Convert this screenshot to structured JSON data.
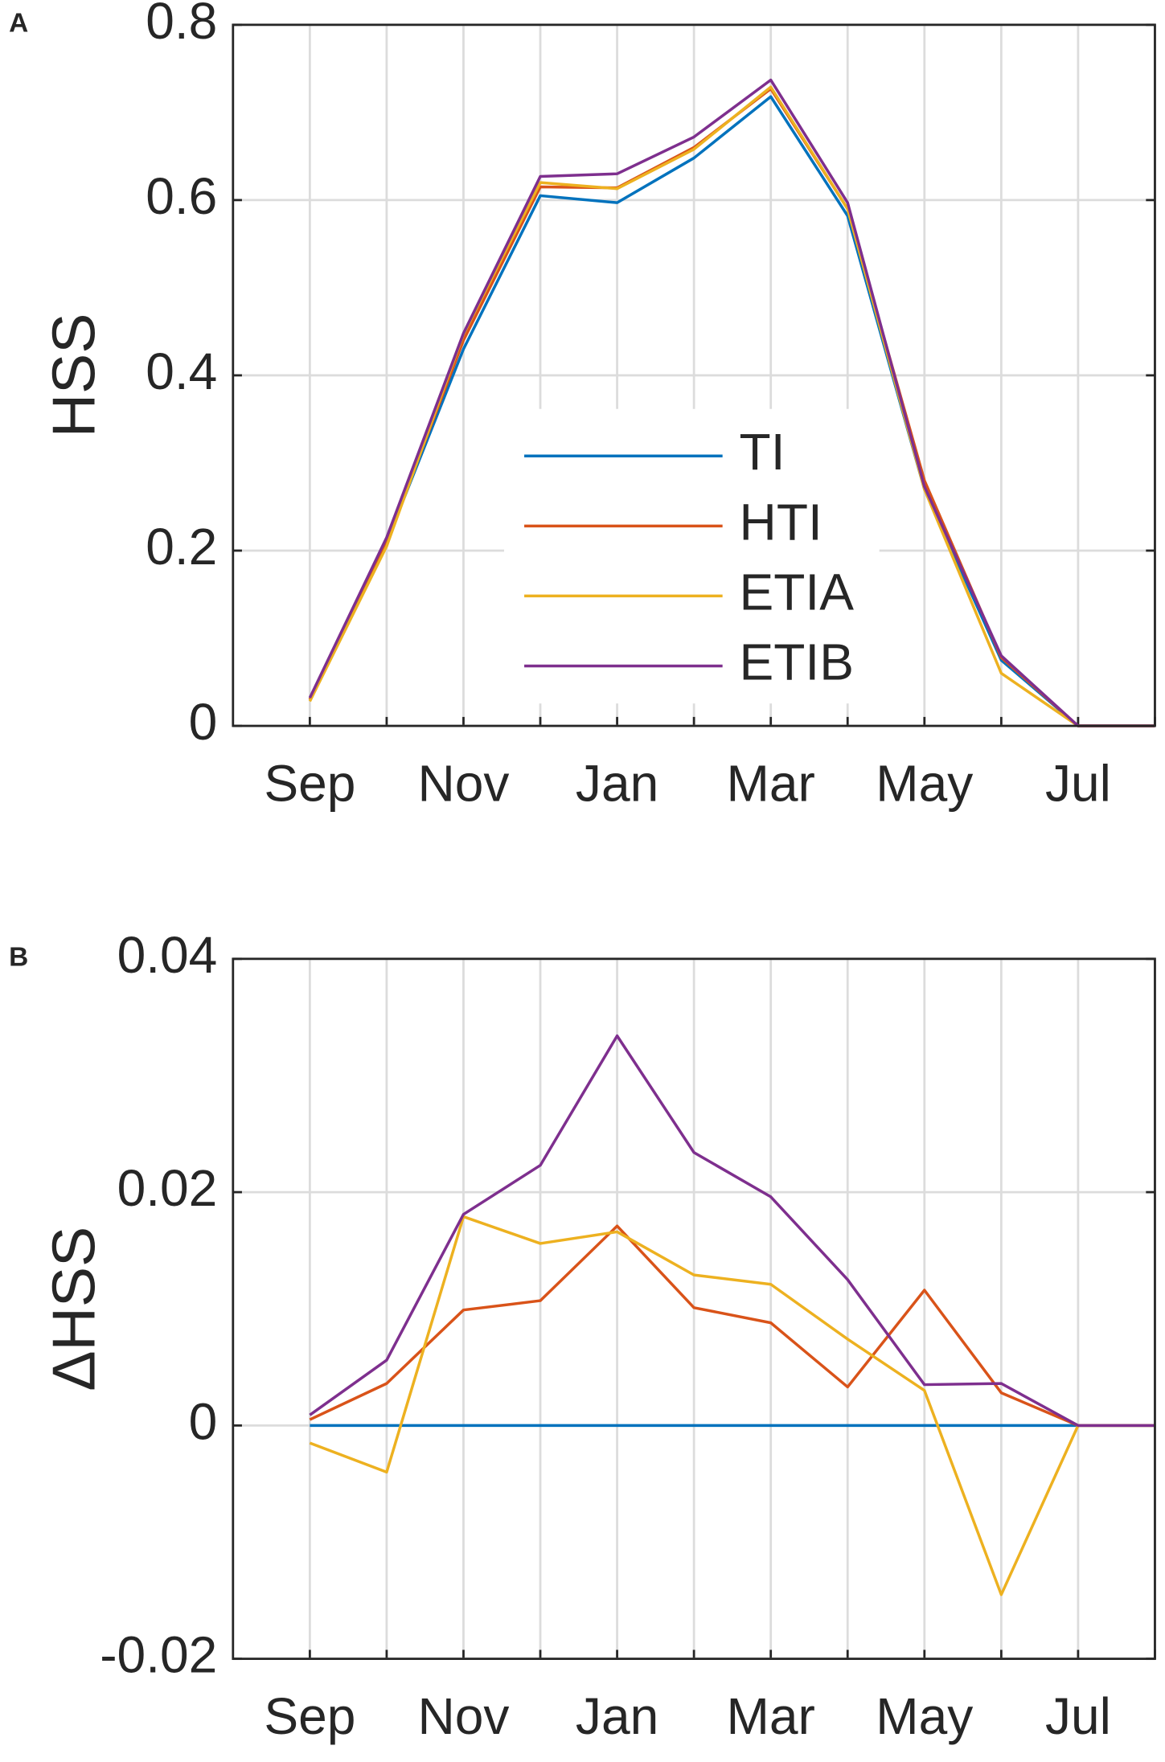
{
  "chart_data": [
    {
      "type": "line",
      "panel_label": "A",
      "ylabel": "HSS",
      "categories": [
        "Sep",
        null,
        "Nov",
        null,
        "Jan",
        null,
        "Mar",
        null,
        "May",
        null,
        "Jul",
        null
      ],
      "series": [
        {
          "name": "TI",
          "color": "#0072BD",
          "values": [
            0.03,
            0.21,
            0.43,
            0.605,
            0.597,
            0.648,
            0.718,
            0.582,
            0.27,
            0.075,
            0,
            0
          ]
        },
        {
          "name": "HTI",
          "color": "#D95319",
          "values": [
            0.03,
            0.21,
            0.44,
            0.615,
            0.614,
            0.66,
            0.727,
            0.59,
            0.28,
            0.078,
            0,
            0
          ]
        },
        {
          "name": "ETIA",
          "color": "#EDB120",
          "values": [
            0.028,
            0.205,
            0.447,
            0.62,
            0.613,
            0.658,
            0.729,
            0.59,
            0.27,
            0.06,
            0,
            0
          ]
        },
        {
          "name": "ETIB",
          "color": "#7E2F8E",
          "values": [
            0.032,
            0.215,
            0.448,
            0.627,
            0.63,
            0.672,
            0.737,
            0.597,
            0.273,
            0.08,
            0,
            0
          ]
        }
      ],
      "ylim": [
        0,
        0.8
      ],
      "yticks": [
        0,
        0.2,
        0.4,
        0.6,
        0.8
      ],
      "grid": true,
      "legend": true
    },
    {
      "type": "line",
      "panel_label": "B",
      "ylabel": "ΔHSS",
      "categories": [
        "Sep",
        null,
        "Nov",
        null,
        "Jan",
        null,
        "Mar",
        null,
        "May",
        null,
        "Jul",
        null
      ],
      "series": [
        {
          "name": "TI",
          "color": "#0072BD",
          "values": [
            0,
            0,
            0,
            0,
            0,
            0,
            0,
            0,
            0,
            0,
            0,
            0
          ]
        },
        {
          "name": "HTI",
          "color": "#D95319",
          "values": [
            0.0005,
            0.0036,
            0.0099,
            0.0107,
            0.0171,
            0.0101,
            0.0088,
            0.0033,
            0.0116,
            0.0028,
            0,
            0
          ]
        },
        {
          "name": "ETIA",
          "color": "#EDB120",
          "values": [
            -0.0015,
            -0.004,
            0.0179,
            0.0156,
            0.0166,
            0.0129,
            0.0121,
            0.0074,
            0.003,
            -0.0145,
            0,
            0
          ]
        },
        {
          "name": "ETIB",
          "color": "#7E2F8E",
          "values": [
            0.0009,
            0.0056,
            0.0181,
            0.0223,
            0.0334,
            0.0234,
            0.0196,
            0.0125,
            0.0035,
            0.0036,
            0,
            0
          ]
        }
      ],
      "ylim": [
        -0.02,
        0.04
      ],
      "yticks": [
        -0.02,
        0,
        0.02,
        0.04
      ],
      "grid": true,
      "legend": false
    }
  ]
}
